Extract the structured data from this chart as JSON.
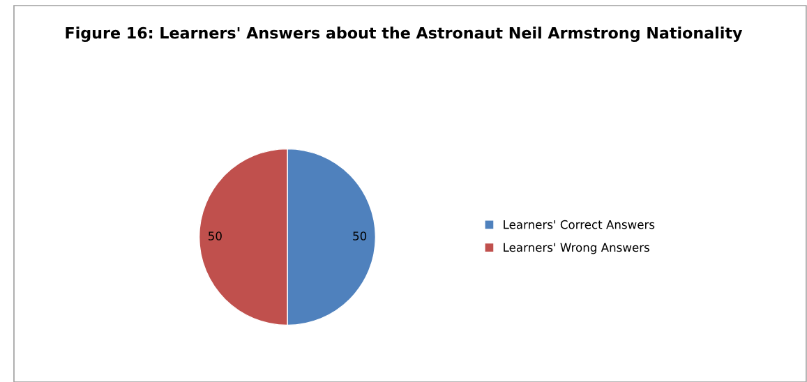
{
  "chart_data": {
    "type": "pie",
    "title": "Figure 16: Learners' Answers about the Astronaut Neil Armstrong Nationality",
    "categories": [
      "Learners' Correct Answers",
      "Learners' Wrong Answers"
    ],
    "values": [
      50,
      50
    ],
    "colors": [
      "#4f81bd",
      "#c0504d"
    ],
    "data_labels": true,
    "legend": "right"
  }
}
